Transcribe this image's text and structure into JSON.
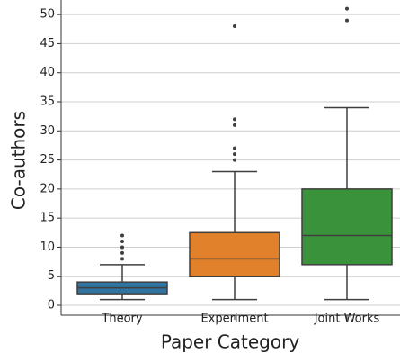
{
  "chart_data": {
    "type": "box",
    "x_label": "Paper Category",
    "y_label": "Co-authors",
    "categories": [
      "Theory",
      "Experiment",
      "Joint Works"
    ],
    "boxes": [
      {
        "color": "#3274a1",
        "min": 1,
        "q1": 2,
        "median": 3,
        "q3": 4,
        "max": 7,
        "outliers": [
          8,
          9,
          10,
          11,
          12
        ]
      },
      {
        "color": "#e1812c",
        "min": 1,
        "q1": 5,
        "median": 8,
        "q3": 12.5,
        "max": 23,
        "outliers": [
          25,
          26,
          27,
          31,
          32,
          48
        ]
      },
      {
        "color": "#3a923a",
        "min": 1,
        "q1": 7,
        "median": 12,
        "q3": 20,
        "max": 34,
        "outliers": [
          49,
          51
        ]
      }
    ],
    "ylim": [
      -1.7,
      52.5
    ],
    "yticks": [
      0,
      5,
      10,
      15,
      20,
      25,
      30,
      35,
      40,
      45,
      50
    ],
    "grid": true
  }
}
